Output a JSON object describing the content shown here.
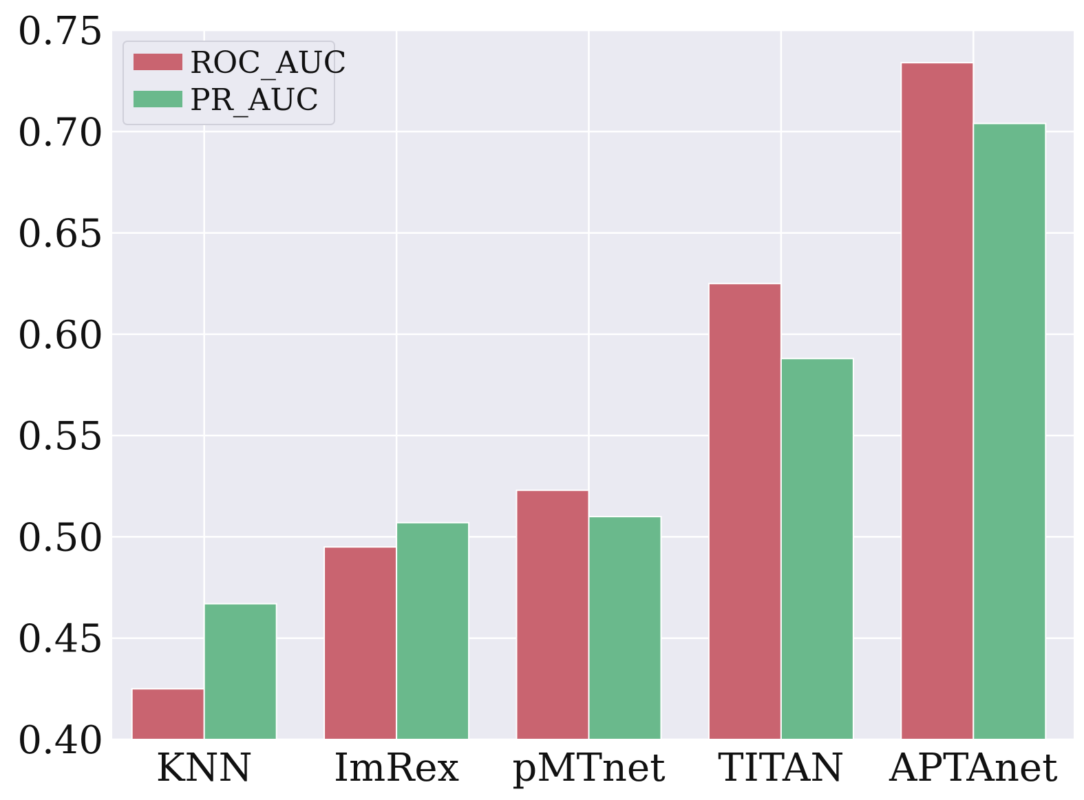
{
  "chart_data": {
    "type": "bar",
    "categories": [
      "KNN",
      "ImRex",
      "pMTnet",
      "TITAN",
      "APTAnet"
    ],
    "series": [
      {
        "name": "ROC_AUC",
        "color": "#c96470",
        "values": [
          0.425,
          0.495,
          0.523,
          0.625,
          0.734
        ]
      },
      {
        "name": "PR_AUC",
        "color": "#6ab98c",
        "values": [
          0.467,
          0.507,
          0.51,
          0.588,
          0.704
        ]
      }
    ],
    "yticks": [
      "0.40",
      "0.45",
      "0.50",
      "0.55",
      "0.60",
      "0.65",
      "0.70",
      "0.75"
    ],
    "ylim": [
      0.4,
      0.75
    ],
    "grid": true,
    "legend_position": "top-left",
    "background_color": "#eaeaf2",
    "grid_color": "#ffffff"
  }
}
